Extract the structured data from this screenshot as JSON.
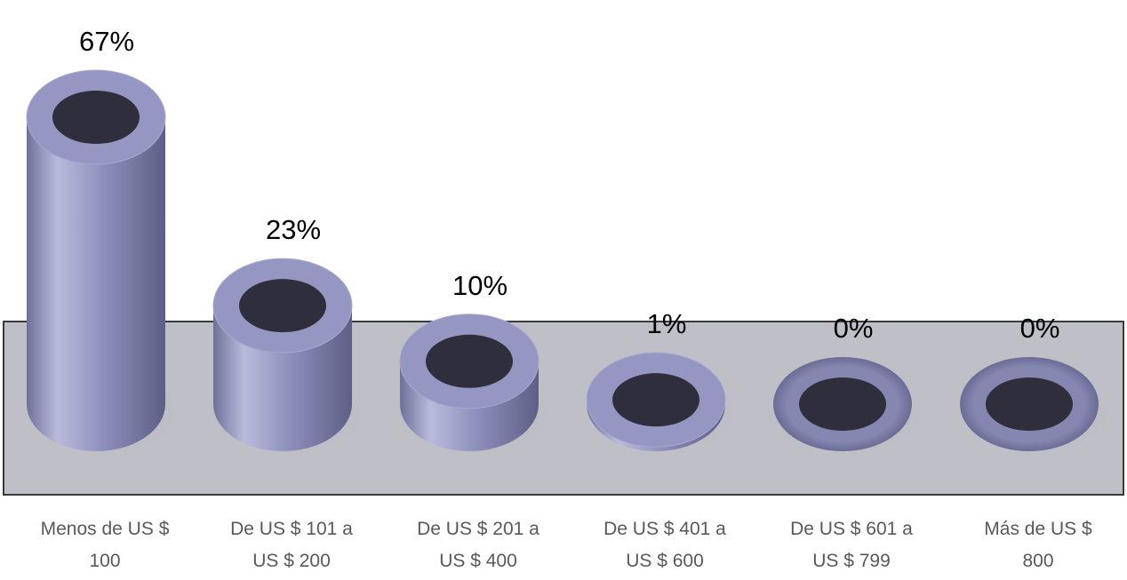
{
  "chart_data": {
    "type": "bar",
    "style": "3d-cylinder-donut",
    "categories": [
      [
        "Menos de US $",
        "100"
      ],
      [
        "De US $ 101 a",
        "US $ 200"
      ],
      [
        "De US $ 201 a",
        "US $ 400"
      ],
      [
        "De US $ 401 a",
        "US $ 600"
      ],
      [
        "De US $ 601 a",
        "US $ 799"
      ],
      [
        "Más de US $",
        "800"
      ]
    ],
    "values": [
      67,
      23,
      10,
      1,
      0,
      0
    ],
    "data_labels": [
      "67%",
      "23%",
      "10%",
      "1%",
      "0%",
      "0%"
    ],
    "unit": "%",
    "ylim": [
      0,
      67
    ],
    "grid": false,
    "legend": "none",
    "colors": {
      "bar_body": "#8e90bc",
      "bar_body_light": "#b9bbdc",
      "bar_body_dark": "#5d5f86",
      "bar_hole": "#2e2e3c",
      "floor": "#bfbfc8",
      "floor_border": "#3a3a3a",
      "label_text": "#000000",
      "category_text": "#595959"
    }
  }
}
